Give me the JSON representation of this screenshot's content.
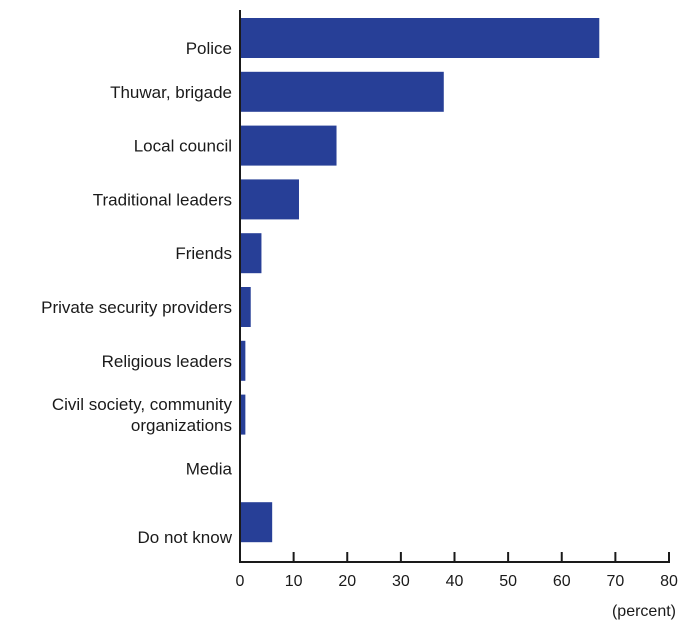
{
  "chart_data": {
    "type": "bar",
    "orientation": "horizontal",
    "categories": [
      [
        "Police"
      ],
      [
        "Thuwar, brigade"
      ],
      [
        "Local council"
      ],
      [
        "Traditional leaders"
      ],
      [
        "Friends"
      ],
      [
        "Private security providers"
      ],
      [
        "Religious leaders"
      ],
      [
        "Civil society, community",
        "organizations"
      ],
      [
        "Media"
      ],
      [
        "Do not know"
      ]
    ],
    "values": [
      67,
      38,
      18,
      11,
      4,
      2,
      1,
      1,
      0,
      6
    ],
    "xlim": [
      0,
      80
    ],
    "xticks": [
      0,
      10,
      20,
      30,
      40,
      50,
      60,
      70,
      80
    ],
    "xlabel": "(percent)",
    "ylabel": "",
    "title": "",
    "grid": false,
    "bar_color": "#273f97",
    "axis_color": "#1a1a1a"
  }
}
